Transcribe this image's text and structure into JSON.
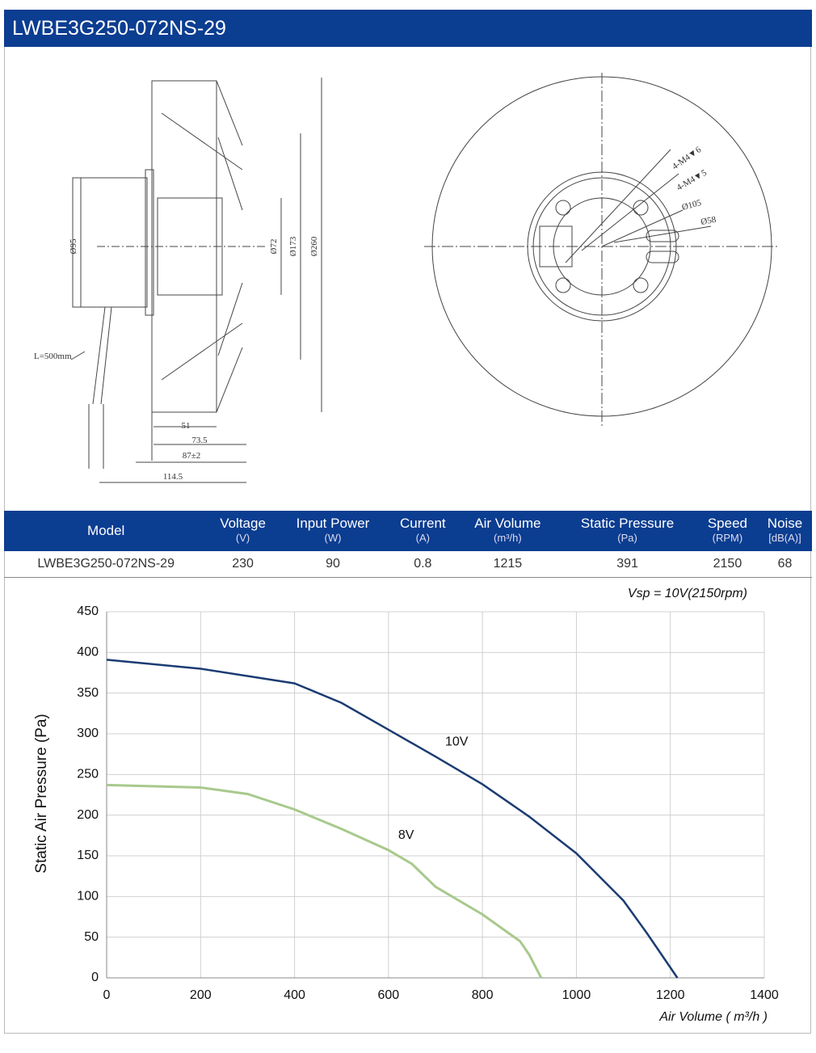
{
  "header": {
    "title": "LWBE3G250-072NS-29"
  },
  "drawing": {
    "labels": [
      "Ø95",
      "Ø72",
      "Ø173",
      "Ø260",
      "L=500mm",
      "51",
      "73.5",
      "87±2",
      "114.5",
      "4-M4▼6",
      "4-M4▼5",
      "Ø105",
      "Ø58"
    ]
  },
  "table": {
    "header": [
      {
        "title": "Model"
      },
      {
        "title": "Voltage",
        "unit": "(V)"
      },
      {
        "title": "Input Power",
        "unit": "(W)"
      },
      {
        "title": "Current",
        "unit": "(A)"
      },
      {
        "title": "Air Volume",
        "unit": "(m³/h)"
      },
      {
        "title": "Static Pressure",
        "unit": "(Pa)"
      },
      {
        "title": "Speed",
        "unit": "(RPM)"
      },
      {
        "title": "Noise",
        "unit": "[dB(A)]"
      }
    ],
    "rows": [
      [
        "LWBE3G250-072NS-29",
        230,
        90,
        0.8,
        1215,
        391,
        2150,
        68
      ]
    ]
  },
  "chart_data": {
    "type": "line",
    "annotation": "Vsp = 10V(2150rpm)",
    "x_label": "Air Volume ( m³/h )",
    "y_label": "Static Air Pressure  (Pa)",
    "xlim": [
      0,
      1400
    ],
    "xticks": [
      0,
      200,
      400,
      600,
      800,
      1000,
      1200,
      1400
    ],
    "ylim": [
      0,
      450
    ],
    "yticks": [
      0,
      50,
      100,
      150,
      200,
      250,
      300,
      350,
      400,
      450
    ],
    "grid": true,
    "series": [
      {
        "name": "10V",
        "color": "#1b3c72",
        "x": [
          0,
          200,
          400,
          500,
          600,
          700,
          800,
          900,
          1000,
          1100,
          1150,
          1215
        ],
        "values": [
          391,
          380,
          362,
          338,
          305,
          272,
          238,
          198,
          153,
          95,
          55,
          0
        ]
      },
      {
        "name": "8V",
        "color": "#a8c98c",
        "x": [
          0,
          200,
          300,
          400,
          500,
          600,
          650,
          700,
          800,
          880,
          900,
          925
        ],
        "values": [
          237,
          234,
          226,
          207,
          183,
          157,
          140,
          112,
          78,
          45,
          28,
          0
        ]
      }
    ]
  }
}
